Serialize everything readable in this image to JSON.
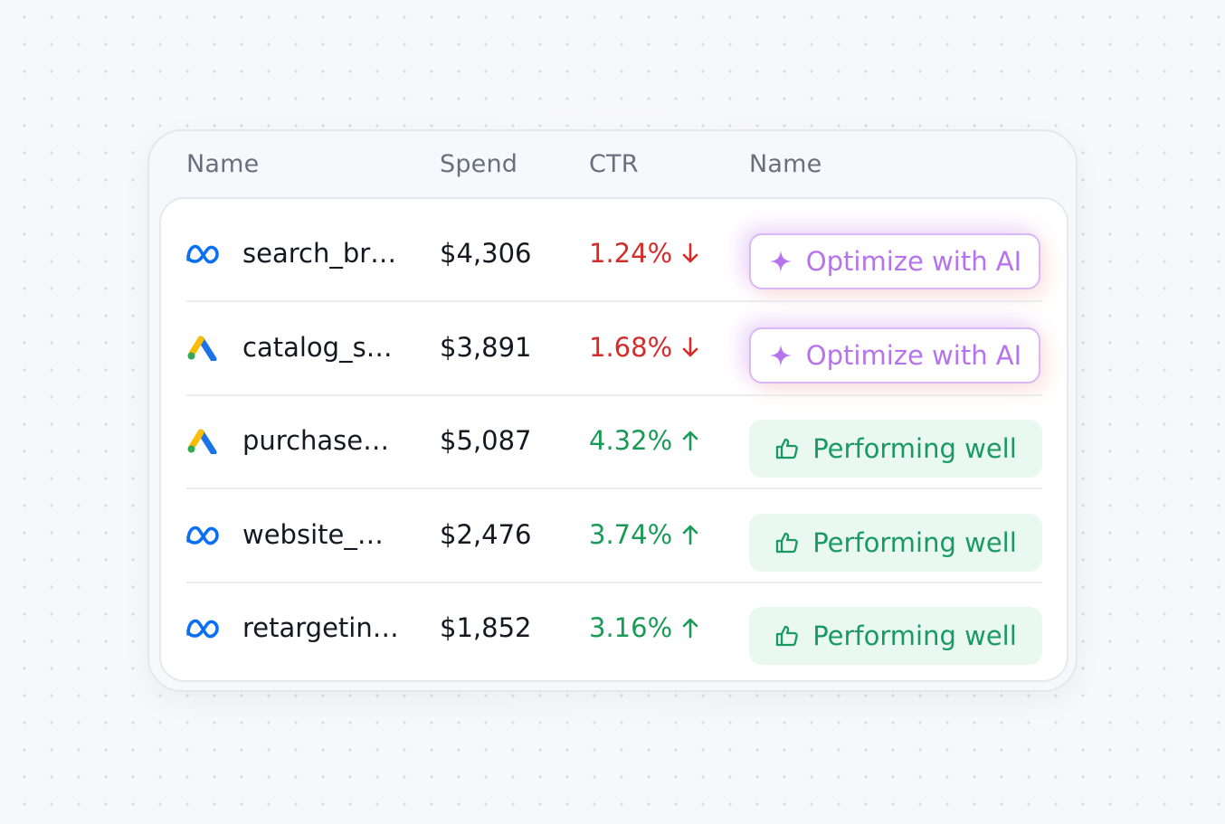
{
  "table": {
    "columns": [
      "Name",
      "Spend",
      "CTR",
      "Name"
    ],
    "rows": [
      {
        "platform": "meta-icon",
        "name": "search_br…",
        "spend": "$4,306",
        "ctr": "1.24%",
        "trend": "down",
        "action": "Optimize with AI"
      },
      {
        "platform": "google-ads-icon",
        "name": "catalog_s…",
        "spend": "$3,891",
        "ctr": "1.68%",
        "trend": "down",
        "action": "Optimize with AI"
      },
      {
        "platform": "google-ads-icon",
        "name": "purchase…",
        "spend": "$5,087",
        "ctr": "4.32%",
        "trend": "up",
        "action": "Performing well"
      },
      {
        "platform": "meta-icon",
        "name": "website_…",
        "spend": "$2,476",
        "ctr": "3.74%",
        "trend": "up",
        "action": "Performing well"
      },
      {
        "platform": "meta-icon",
        "name": "retargetin…",
        "spend": "$1,852",
        "ctr": "3.16%",
        "trend": "up",
        "action": "Performing well"
      }
    ]
  },
  "colors": {
    "down": "#d42b2b",
    "up": "#1b9a57",
    "ai_accent": "#b673ea",
    "good_accent": "#1a9a63",
    "good_bg": "#eaf8f2"
  }
}
